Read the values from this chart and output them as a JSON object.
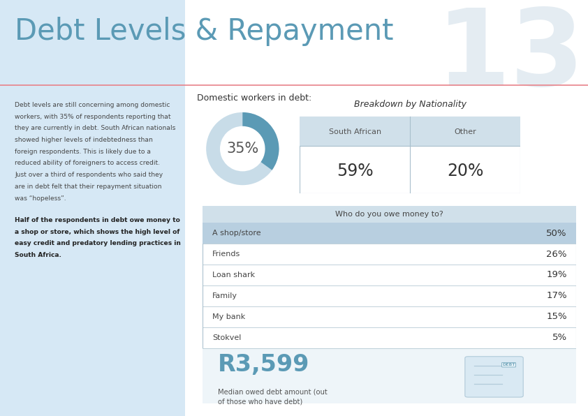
{
  "title": "Debt Levels & Repayment",
  "page_number": "13",
  "bg_left_color": "#d6e8f5",
  "bg_right_color": "#ffffff",
  "title_color": "#5b9ab5",
  "pink_line_color": "#e8838a",
  "left_panel_text_lines": [
    "Debt levels are still concerning among domestic",
    "workers, with 35% of respondents reporting that",
    "they are currently in debt. South African nationals",
    "showed higher levels of indebtedness than",
    "foreign respondents. This is likely due to a",
    "reduced ability of foreigners to access credit.",
    "Just over a third of respondents who said they",
    "are in debt felt that their repayment situation",
    "was “hopeless”."
  ],
  "left_panel_bold_lines": [
    "Half of the respondents in debt owe money to",
    "a shop or store, which shows the high level of",
    "easy credit and predatory lending practices in",
    "South Africa."
  ],
  "donut_label": "Domestic workers in debt:",
  "donut_pct": "35%",
  "donut_value": 35,
  "donut_color": "#5b9ab5",
  "donut_bg_color": "#c8dce8",
  "nationality_title": "Breakdown by Nationality",
  "nationality_cols": [
    "South African",
    "Other"
  ],
  "nationality_vals": [
    "59%",
    "20%"
  ],
  "table_title": "Who do you owe money to?",
  "table_rows": [
    {
      "label": "A shop/store",
      "value": "50%",
      "highlight": true
    },
    {
      "label": "Friends",
      "value": "26%",
      "highlight": false
    },
    {
      "label": "Loan shark",
      "value": "19%",
      "highlight": false
    },
    {
      "label": "Family",
      "value": "17%",
      "highlight": false
    },
    {
      "label": "My bank",
      "value": "15%",
      "highlight": false
    },
    {
      "label": "Stokvel",
      "value": "5%",
      "highlight": false
    }
  ],
  "table_highlight_color": "#b8cfe0",
  "table_header_color": "#d0e0ea",
  "table_border_color": "#a8bfcc",
  "median_amount": "R3,599",
  "median_label": "Median owed debt amount (out\nof those who have debt)",
  "median_color": "#5b9ab5",
  "median_bg_color": "#eef5f9",
  "page_num_color": "#e4ecf2"
}
